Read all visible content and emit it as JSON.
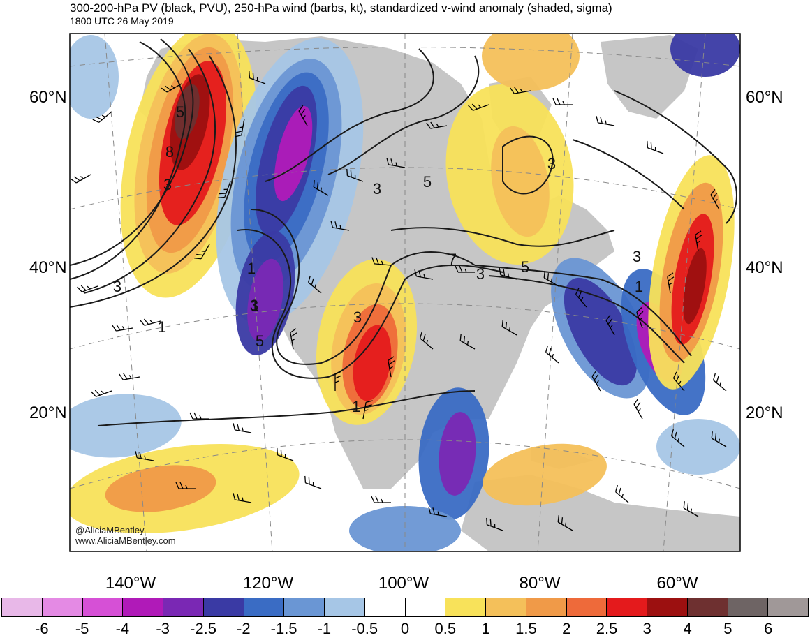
{
  "header": {
    "title": "300-200-hPa PV (black, PVU), 250-hPa wind (barbs, kt), standardized v-wind anomaly (shaded, sigma)",
    "valid_time": "1800 UTC 26 May 2019"
  },
  "map": {
    "projection": "conic",
    "lat_labels": {
      "left": [
        "60°N",
        "40°N",
        "20°N"
      ],
      "right": [
        "60°N",
        "40°N",
        "20°N"
      ]
    },
    "lon_labels": [
      "140°W",
      "120°W",
      "100°W",
      "80°W",
      "60°W"
    ],
    "pv_contour_labels": [
      "3",
      "8",
      "3",
      "5",
      "3",
      "5",
      "1",
      "3",
      "7",
      "3",
      "5",
      "3",
      "1",
      "1",
      "5",
      "3",
      "3",
      "1",
      "1"
    ],
    "credits": [
      "@AliciaMBentley",
      "www.AliciaMBentley.com"
    ]
  },
  "colorbar": {
    "tick_labels": [
      "-6",
      "-5",
      "-4",
      "-3",
      "-2.5",
      "-2",
      "-1.5",
      "-1",
      "-0.5",
      "0",
      "0.5",
      "1",
      "1.5",
      "2",
      "2.5",
      "3",
      "4",
      "5",
      "6"
    ],
    "colors": [
      "#e8b8e8",
      "#e48ae4",
      "#d650d6",
      "#b01ab8",
      "#7a28b4",
      "#3a3aa4",
      "#3a6cc4",
      "#6a96d4",
      "#a6c6e6",
      "#ffffff",
      "#ffffff",
      "#f8e25a",
      "#f4c05a",
      "#f09a48",
      "#ee6a3a",
      "#e41a1c",
      "#9c1010",
      "#6e3030",
      "#6e6464",
      "#a09898"
    ]
  },
  "colors": {
    "land": "#c6c6c6",
    "ocean": "#ffffff",
    "pv_contour": "#1a1a1a"
  }
}
